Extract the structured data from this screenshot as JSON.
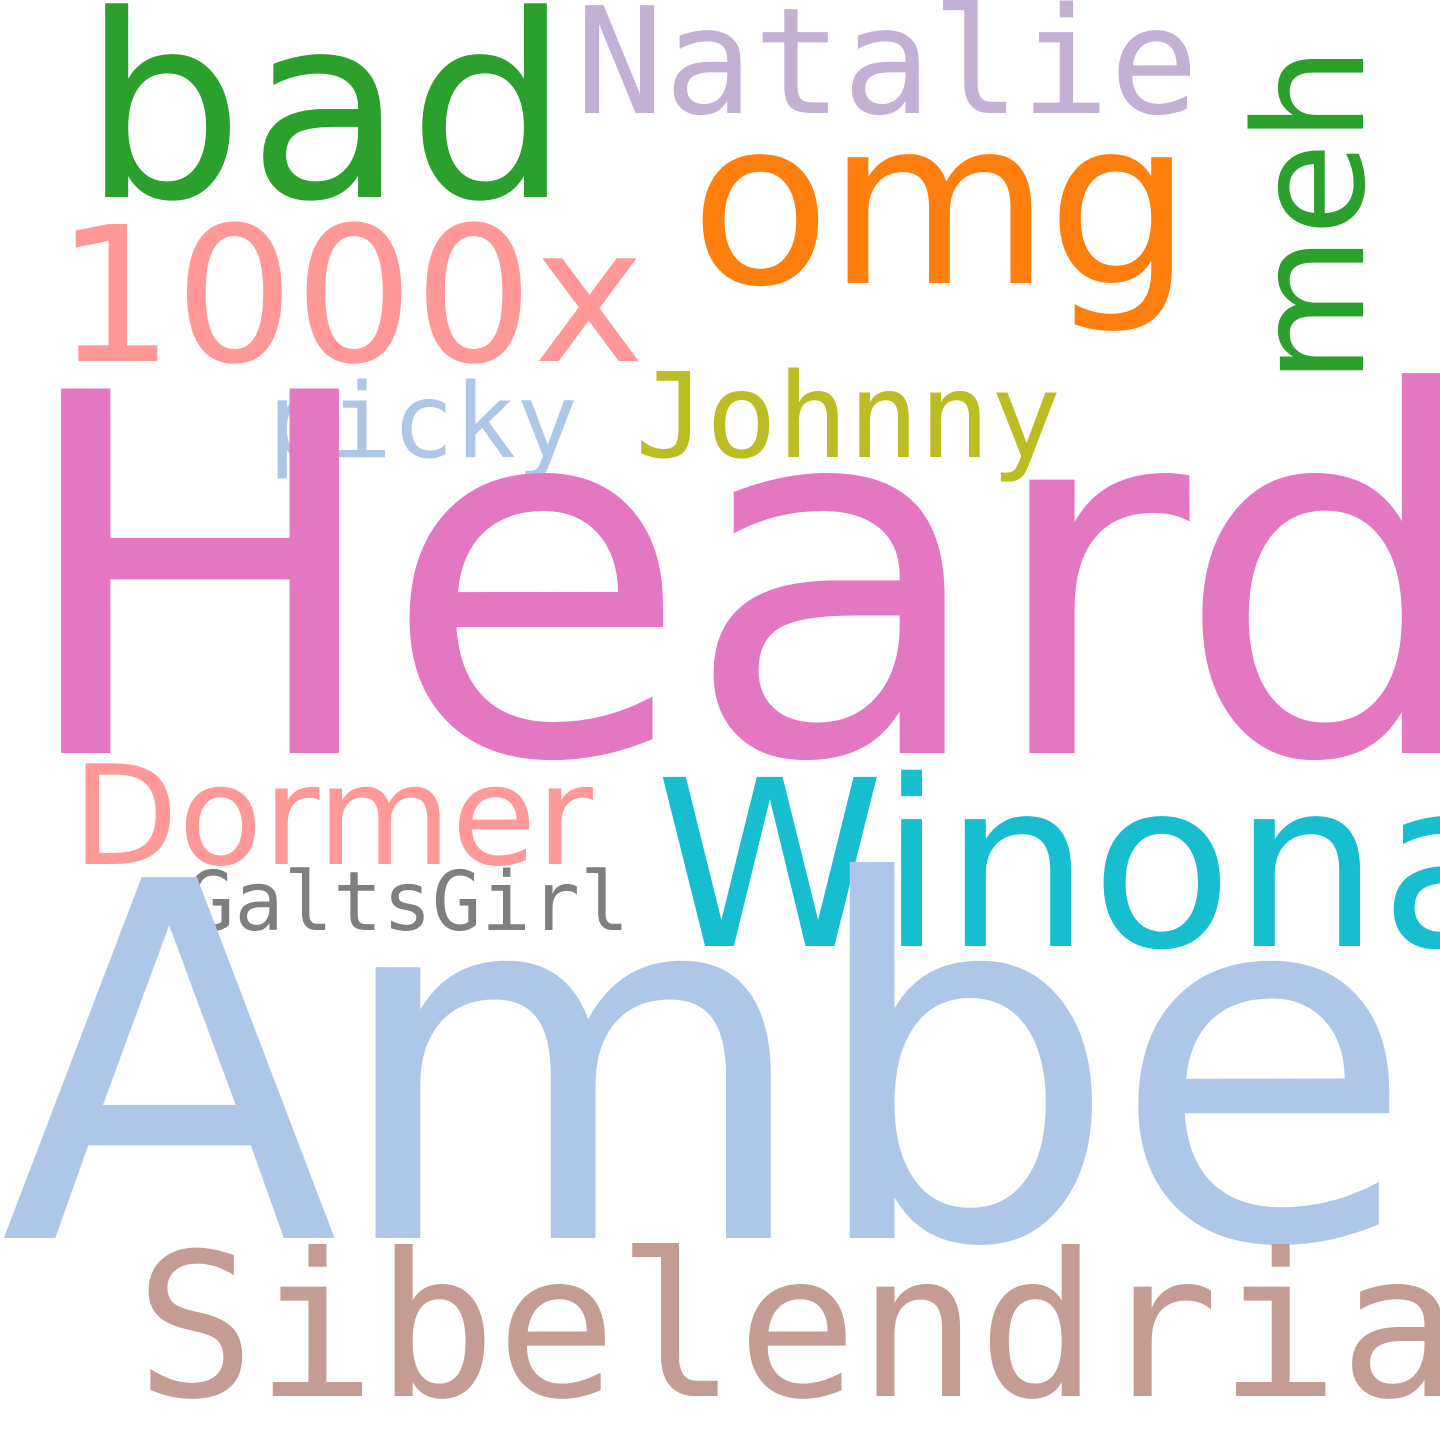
{
  "words": {
    "heard": {
      "text": "Heard",
      "color": "#e377c2"
    },
    "amber": {
      "text": "Amber",
      "color": "#aec7e8"
    },
    "bad": {
      "text": "bad",
      "color": "#2ca02c"
    },
    "omg": {
      "text": "omg",
      "color": "#ff7f0e"
    },
    "natalie": {
      "text": "Natalie",
      "color": "#c5b0d5"
    },
    "meh": {
      "text": "meh",
      "color": "#2ca02c"
    },
    "thousand_x": {
      "text": "1000x",
      "color": "#ff9896"
    },
    "picky": {
      "text": "picky",
      "color": "#aec7e8"
    },
    "johnny": {
      "text": "Johnny",
      "color": "#bcbd22"
    },
    "dormer": {
      "text": "Dormer",
      "color": "#ff9896"
    },
    "winona": {
      "text": "Winona",
      "color": "#17becf"
    },
    "galtsgirl": {
      "text": "GaltsGirl",
      "color": "#7f7f7f"
    },
    "sibelendria": {
      "text": "Sibelendria",
      "color": "#c49c94"
    }
  }
}
